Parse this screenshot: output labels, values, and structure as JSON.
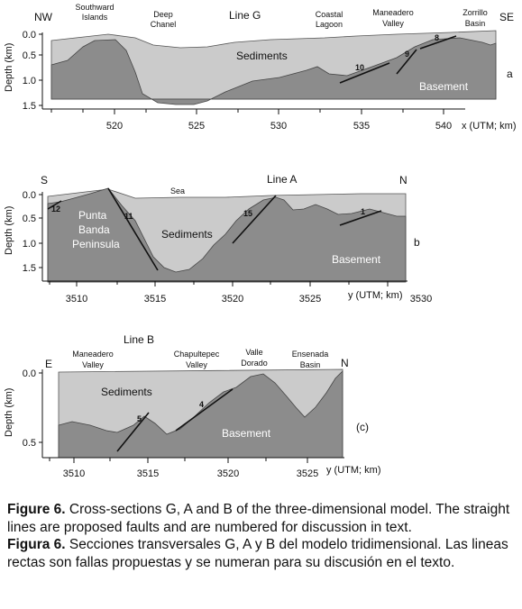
{
  "panels": [
    {
      "id": "a",
      "line": "Line G",
      "left_label": "NW",
      "right_label": "SE",
      "panel_letter": "a",
      "y_axis_label": "Depth (km)",
      "y_ticks": [
        "0.0",
        "0.5",
        "1.0",
        "1.5"
      ],
      "x_ticks": [
        "520",
        "525",
        "530",
        "535",
        "540"
      ],
      "x_axis_label": "x (UTM; km)",
      "top_labels": [
        {
          "text": "Southward"
        },
        {
          "text": "Islands"
        },
        {
          "text": "Deep"
        },
        {
          "text": "Chanel"
        },
        {
          "text": "Coastal"
        },
        {
          "text": "Lagoon"
        },
        {
          "text": "Maneadero"
        },
        {
          "text": "Valley"
        },
        {
          "text": "Zorrillo"
        },
        {
          "text": "Basin"
        }
      ],
      "region_labels": [
        "Sediments",
        "Basement"
      ],
      "faults": [
        "10",
        "9",
        "8"
      ]
    },
    {
      "id": "b",
      "line": "Line A",
      "left_label": "S",
      "right_label": "N",
      "panel_letter": "b",
      "y_axis_label": "Depth (km)",
      "y_ticks": [
        "0.0",
        "0.5",
        "1.0",
        "1.5"
      ],
      "x_ticks": [
        "3510",
        "3515",
        "3520",
        "3525",
        "3530"
      ],
      "x_axis_label": "y (UTM; km)",
      "top_labels": [
        {
          "text": "Sea"
        }
      ],
      "region_labels": [
        "Punta",
        "Banda",
        "Peninsula",
        "Sediments",
        "Basement"
      ],
      "faults": [
        "12",
        "11",
        "15",
        "1"
      ]
    },
    {
      "id": "c",
      "line": "Line B",
      "left_label": "E",
      "right_label": "N",
      "panel_letter": "(c)",
      "y_axis_label": "Depth (km)",
      "y_ticks": [
        "0.0",
        "0.5"
      ],
      "x_ticks": [
        "3510",
        "3515",
        "3520",
        "3525"
      ],
      "x_axis_label": "y (UTM; km)",
      "top_labels": [
        {
          "text": "Maneadero"
        },
        {
          "text": "Valley"
        },
        {
          "text": "Chapultepec"
        },
        {
          "text": "Valley"
        },
        {
          "text": "Valle"
        },
        {
          "text": "Dorado"
        },
        {
          "text": "Ensenada"
        },
        {
          "text": "Basin"
        }
      ],
      "region_labels": [
        "Sediments",
        "Basement"
      ],
      "faults": [
        "5",
        "4"
      ]
    }
  ],
  "caption": {
    "en_label": "Figure 6.",
    "en_text": " Cross-sections G, A and B of the three-dimensional model. The straight lines are proposed faults and are numbered for discussion in text.",
    "es_label": "Figura 6.",
    "es_text": " Secciones transversales G, A y B del modelo tridimensional. Las lineas rectas son fallas propuestas y se numeran para su discusión en el texto."
  },
  "colors": {
    "sediments": "#cbcbcb",
    "basement": "#8c8c8c",
    "axis": "#111111"
  }
}
